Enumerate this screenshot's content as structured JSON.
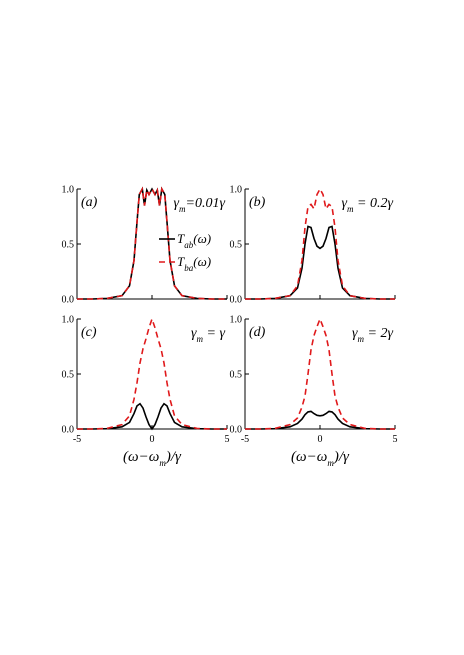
{
  "chart_data": [
    {
      "type": "line",
      "panel_label": "(a)",
      "gamma_text": "γm=0.01γ",
      "xlim": [
        -5,
        5
      ],
      "ylim": [
        0,
        1
      ],
      "xticks": [
        -5,
        0,
        5
      ],
      "yticks": [
        "0.0",
        "0.5",
        "1.0"
      ],
      "legend": {
        "placement": "right",
        "entries": [
          "Tab(ω)",
          "Tba(ω)"
        ]
      },
      "series": [
        {
          "name": "Tab(ω)",
          "style": "solid",
          "color": "#000000",
          "x": [
            -4.0,
            -3.0,
            -2.0,
            -1.5,
            -1.2,
            -1.0,
            -0.85,
            -0.65,
            -0.5,
            -0.35,
            -0.2,
            0.0,
            0.2,
            0.35,
            0.5,
            0.65,
            0.85,
            1.0,
            1.2,
            1.5,
            2.0,
            3.0,
            4.0
          ],
          "y": [
            0.0,
            0.005,
            0.03,
            0.12,
            0.35,
            0.7,
            0.95,
            1.0,
            0.85,
            0.99,
            0.95,
            1.0,
            0.95,
            0.99,
            0.85,
            1.0,
            0.95,
            0.7,
            0.35,
            0.12,
            0.03,
            0.005,
            0.0
          ]
        },
        {
          "name": "Tba(ω)",
          "style": "dashed",
          "color": "#e0191b",
          "x": [
            -4.0,
            -3.0,
            -2.0,
            -1.5,
            -1.2,
            -1.0,
            -0.85,
            -0.65,
            -0.5,
            -0.35,
            -0.2,
            0.0,
            0.2,
            0.35,
            0.5,
            0.65,
            0.85,
            1.0,
            1.2,
            1.5,
            2.0,
            3.0,
            4.0
          ],
          "y": [
            0.0,
            0.005,
            0.03,
            0.12,
            0.35,
            0.7,
            0.95,
            1.0,
            0.85,
            0.99,
            0.95,
            1.0,
            0.95,
            0.99,
            0.85,
            1.0,
            0.95,
            0.7,
            0.35,
            0.12,
            0.03,
            0.005,
            0.0
          ]
        }
      ]
    },
    {
      "type": "line",
      "panel_label": "(b)",
      "gamma_text": "γm = 0.2γ",
      "xlim": [
        -5,
        5
      ],
      "ylim": [
        0,
        1
      ],
      "xticks": [
        -5,
        0,
        5
      ],
      "yticks": [
        "0.0",
        "0.5",
        "1.0"
      ],
      "series": [
        {
          "name": "Tab(ω)",
          "style": "solid",
          "color": "#000000",
          "x": [
            -4.0,
            -3.0,
            -2.0,
            -1.5,
            -1.2,
            -1.0,
            -0.8,
            -0.6,
            -0.4,
            -0.2,
            0.0,
            0.2,
            0.4,
            0.6,
            0.8,
            1.0,
            1.2,
            1.5,
            2.0,
            3.0,
            4.0
          ],
          "y": [
            0.0,
            0.005,
            0.03,
            0.1,
            0.28,
            0.5,
            0.66,
            0.65,
            0.55,
            0.48,
            0.46,
            0.48,
            0.55,
            0.65,
            0.66,
            0.5,
            0.28,
            0.1,
            0.03,
            0.005,
            0.0
          ]
        },
        {
          "name": "Tba(ω)",
          "style": "dashed",
          "color": "#e0191b",
          "x": [
            -4.0,
            -3.0,
            -2.0,
            -1.5,
            -1.2,
            -1.0,
            -0.8,
            -0.6,
            -0.4,
            -0.2,
            0.0,
            0.2,
            0.4,
            0.6,
            0.8,
            1.0,
            1.2,
            1.5,
            2.0,
            3.0,
            4.0
          ],
          "y": [
            0.0,
            0.005,
            0.03,
            0.12,
            0.35,
            0.65,
            0.84,
            0.86,
            0.82,
            0.95,
            1.0,
            0.95,
            0.82,
            0.86,
            0.84,
            0.65,
            0.35,
            0.12,
            0.03,
            0.005,
            0.0
          ]
        }
      ]
    },
    {
      "type": "line",
      "panel_label": "(c)",
      "gamma_text": "γm = γ",
      "xlim": [
        -5,
        5
      ],
      "ylim": [
        0,
        1
      ],
      "xticks": [
        -5,
        0,
        5
      ],
      "yticks": [
        "0.0",
        "0.5",
        "1.0"
      ],
      "series": [
        {
          "name": "Tab(ω)",
          "style": "solid",
          "color": "#000000",
          "x": [
            -4.0,
            -3.0,
            -2.0,
            -1.5,
            -1.2,
            -1.0,
            -0.8,
            -0.6,
            -0.4,
            -0.2,
            0.0,
            0.2,
            0.4,
            0.6,
            0.8,
            1.0,
            1.2,
            1.5,
            2.0,
            3.0,
            4.0
          ],
          "y": [
            0.0,
            0.003,
            0.02,
            0.06,
            0.14,
            0.21,
            0.23,
            0.19,
            0.11,
            0.04,
            0.0,
            0.04,
            0.11,
            0.19,
            0.23,
            0.21,
            0.14,
            0.06,
            0.02,
            0.003,
            0.0
          ]
        },
        {
          "name": "Tba(ω)",
          "style": "dashed",
          "color": "#e0191b",
          "x": [
            -4.0,
            -3.0,
            -2.0,
            -1.5,
            -1.2,
            -1.0,
            -0.8,
            -0.6,
            -0.4,
            -0.2,
            0.0,
            0.2,
            0.4,
            0.6,
            0.8,
            1.0,
            1.2,
            1.5,
            2.0,
            3.0,
            4.0
          ],
          "y": [
            0.0,
            0.005,
            0.04,
            0.12,
            0.27,
            0.42,
            0.6,
            0.73,
            0.82,
            0.92,
            1.0,
            0.92,
            0.82,
            0.73,
            0.6,
            0.42,
            0.27,
            0.12,
            0.04,
            0.005,
            0.0
          ]
        }
      ]
    },
    {
      "type": "line",
      "panel_label": "(d)",
      "gamma_text": "γm = 2γ",
      "xlim": [
        -5,
        5
      ],
      "ylim": [
        0,
        1
      ],
      "xticks": [
        -5,
        0,
        5
      ],
      "yticks": [
        "0.0",
        "0.5",
        "1.0"
      ],
      "series": [
        {
          "name": "Tab(ω)",
          "style": "solid",
          "color": "#000000",
          "x": [
            -4.0,
            -3.0,
            -2.0,
            -1.5,
            -1.2,
            -1.0,
            -0.8,
            -0.6,
            -0.4,
            -0.2,
            0.0,
            0.2,
            0.4,
            0.6,
            0.8,
            1.0,
            1.2,
            1.5,
            2.0,
            3.0,
            4.0
          ],
          "y": [
            0.0,
            0.003,
            0.02,
            0.05,
            0.09,
            0.13,
            0.155,
            0.16,
            0.14,
            0.125,
            0.12,
            0.125,
            0.14,
            0.16,
            0.155,
            0.13,
            0.09,
            0.05,
            0.02,
            0.003,
            0.0
          ]
        },
        {
          "name": "Tba(ω)",
          "style": "dashed",
          "color": "#e0191b",
          "x": [
            -4.0,
            -3.0,
            -2.0,
            -1.5,
            -1.2,
            -1.0,
            -0.8,
            -0.6,
            -0.4,
            -0.2,
            0.0,
            0.2,
            0.4,
            0.6,
            0.8,
            1.0,
            1.2,
            1.5,
            2.0,
            3.0,
            4.0
          ],
          "y": [
            0.0,
            0.005,
            0.04,
            0.1,
            0.2,
            0.3,
            0.5,
            0.72,
            0.85,
            0.93,
            1.0,
            0.93,
            0.85,
            0.72,
            0.5,
            0.3,
            0.2,
            0.1,
            0.04,
            0.005,
            0.0
          ]
        }
      ]
    }
  ],
  "xlabel_text": "(ω−ωm)/γ"
}
